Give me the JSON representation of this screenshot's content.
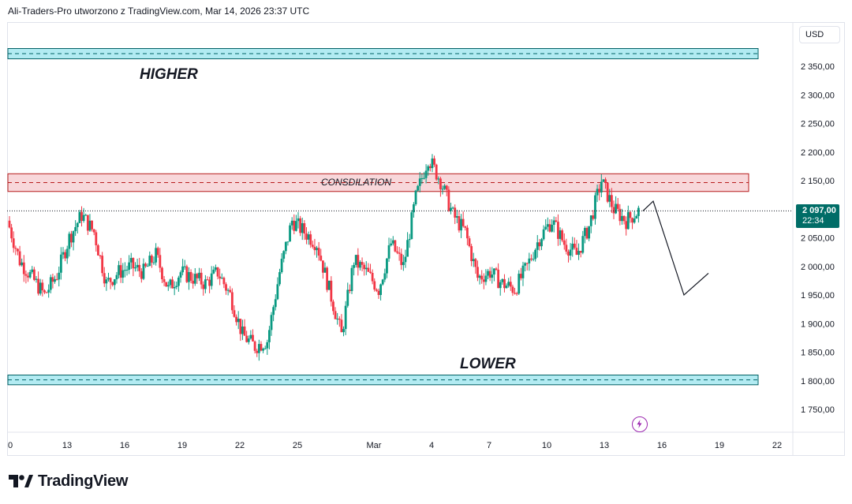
{
  "header": {
    "title": "Ali-Traders-Pro utworzono z TradingView.com, Mar 14, 2026 23:37 UTC"
  },
  "price_axis": {
    "currency": "USD",
    "ticks": [
      "2 350,00",
      "2 300,00",
      "2 250,00",
      "2 200,00",
      "2 150,00",
      "2 100,00",
      "2 050,00",
      "2 000,00",
      "1 950,00",
      "1 900,00",
      "1 850,00",
      "1 800,00",
      "1 750,00"
    ]
  },
  "time_axis": {
    "ticks": [
      "0",
      "13",
      "16",
      "19",
      "22",
      "25",
      "Mar",
      "4",
      "7",
      "10",
      "13",
      "16",
      "19",
      "22"
    ]
  },
  "current_price": {
    "value": "2 097,00",
    "countdown": "22:34",
    "color": "#006d67"
  },
  "annotations": {
    "higher": "HIGHER",
    "lower": "LOWER",
    "consolidation": "CONSDILATION"
  },
  "icons": {
    "logo": "tradingview-logo-icon",
    "alert": "lightning-bolt-icon"
  },
  "branding": {
    "logo_text": "TradingView"
  },
  "colors": {
    "up": "#089981",
    "down": "#f23645",
    "zone_blue": "#b2ebf2",
    "zone_pink": "#f8d7da",
    "zone_blue_border": "#006064",
    "zone_pink_border": "#b71c1c"
  },
  "chart_data": {
    "type": "candlestick",
    "symbol_currency": "USD",
    "ylim": [
      1720,
      2400
    ],
    "y_ticks": [
      2350,
      2300,
      2250,
      2200,
      2150,
      2100,
      2050,
      2000,
      1950,
      1900,
      1850,
      1800,
      1750
    ],
    "x_tick_labels": [
      "0",
      "13",
      "16",
      "19",
      "22",
      "25",
      "Mar",
      "4",
      "7",
      "10",
      "13",
      "16",
      "19",
      "22"
    ],
    "last_price": 2097,
    "zones": [
      {
        "label": "HIGHER",
        "low": 2363,
        "high": 2381,
        "color": "blue"
      },
      {
        "label": "CONSDILATION",
        "low": 2131,
        "high": 2162,
        "color": "pink"
      },
      {
        "label": "LOWER",
        "low": 1793,
        "high": 1810,
        "color": "blue"
      }
    ],
    "projection_path": [
      2097,
      2114,
      1950,
      1988
    ],
    "ohlc_trend": [
      2080,
      2010,
      1980,
      1950,
      1985,
      2050,
      2090,
      2060,
      1970,
      1990,
      2000,
      1990,
      2020,
      1960,
      1990,
      1980,
      1970,
      1990,
      1950,
      1880,
      1860,
      1870,
      1990,
      2080,
      2060,
      2040,
      1960,
      1880,
      2010,
      1990,
      1960,
      2040,
      2000,
      2120,
      2190,
      2150,
      2090,
      2060,
      1980,
      1990,
      1970,
      1960,
      2000,
      2050,
      2080,
      2040,
      2020,
      2070,
      2150,
      2100,
      2080,
      2097
    ]
  }
}
